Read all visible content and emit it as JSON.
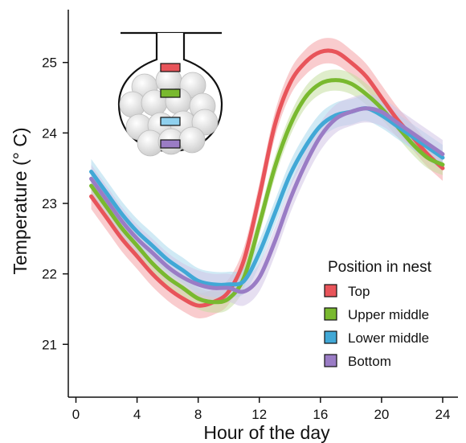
{
  "chart_data": {
    "type": "line",
    "xlabel": "Hour of the day",
    "ylabel": "Temperature (° C)",
    "xlim": [
      -0.5,
      25
    ],
    "ylim": [
      20.25,
      25.75
    ],
    "xticks": [
      0,
      4,
      8,
      12,
      16,
      20,
      24
    ],
    "yticks": [
      21,
      22,
      23,
      24,
      25
    ],
    "grid": false,
    "legend": {
      "title": "Position in nest",
      "placement": "bottom-right"
    },
    "x": [
      1,
      2,
      3,
      4,
      5,
      6,
      7,
      8,
      9,
      10,
      11,
      12,
      13,
      14,
      15,
      16,
      17,
      18,
      19,
      20,
      21,
      22,
      23,
      24
    ],
    "series": [
      {
        "name": "Top",
        "color": "#e8545a",
        "band_color": "#f4a3a6",
        "values": [
          23.1,
          22.8,
          22.5,
          22.25,
          22.0,
          21.8,
          21.65,
          21.55,
          21.6,
          21.75,
          22.2,
          23.1,
          24.1,
          24.7,
          25.0,
          25.15,
          25.15,
          25.0,
          24.8,
          24.5,
          24.2,
          23.95,
          23.7,
          23.5
        ],
        "band": 0.18
      },
      {
        "name": "Upper middle",
        "color": "#79b92f",
        "band_color": "#c4dea0",
        "values": [
          23.25,
          22.95,
          22.65,
          22.4,
          22.15,
          21.95,
          21.8,
          21.65,
          21.6,
          21.65,
          21.95,
          22.7,
          23.5,
          24.1,
          24.5,
          24.7,
          24.75,
          24.7,
          24.55,
          24.35,
          24.1,
          23.85,
          23.65,
          23.55
        ],
        "band": 0.15
      },
      {
        "name": "Lower middle",
        "color": "#41a8d6",
        "band_color": "#aad8ec",
        "values": [
          23.45,
          23.15,
          22.85,
          22.6,
          22.4,
          22.2,
          22.05,
          21.9,
          21.85,
          21.85,
          21.9,
          22.3,
          22.85,
          23.4,
          23.8,
          24.1,
          24.25,
          24.3,
          24.35,
          24.25,
          24.1,
          23.95,
          23.8,
          23.65
        ],
        "band": 0.18
      },
      {
        "name": "Bottom",
        "color": "#9a7cc5",
        "band_color": "#d2c4e6",
        "values": [
          23.35,
          23.05,
          22.75,
          22.5,
          22.3,
          22.1,
          21.95,
          21.85,
          21.8,
          21.8,
          21.75,
          21.95,
          22.45,
          23.05,
          23.55,
          23.95,
          24.2,
          24.3,
          24.35,
          24.3,
          24.15,
          24.0,
          23.85,
          23.7
        ],
        "band": 0.2
      }
    ]
  }
}
